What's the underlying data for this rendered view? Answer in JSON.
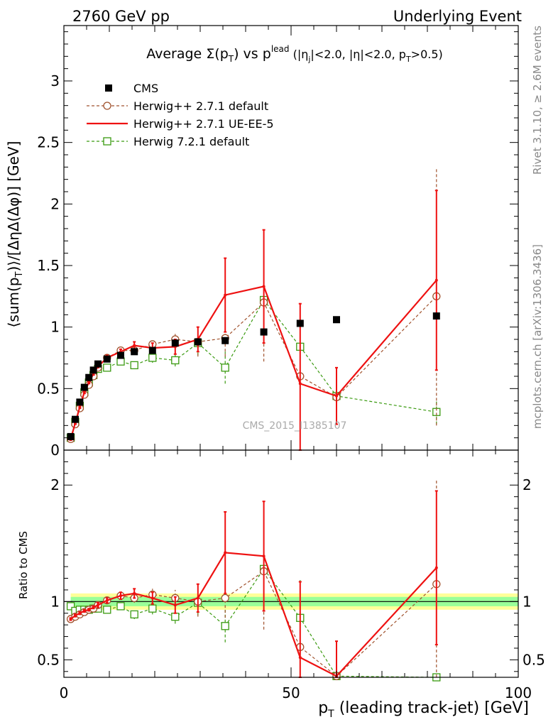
{
  "header": {
    "left": "2760 GeV pp",
    "right": "Underlying Event"
  },
  "side_labels": {
    "rivet": "Rivet 3.1.10, ≥ 2.6M events",
    "mcplots": "mcplots.cern.ch [arXiv:1306.3436]"
  },
  "watermark": "CMS_2015_I1385107",
  "colors": {
    "cms": "#000000",
    "herwigpp_default": "#a0522d",
    "herwigpp_ueee5": "#ee1111",
    "herwig7": "#3a9a10",
    "band_outer": "#ffff99",
    "band_inner": "#99ff99"
  },
  "chart_data": [
    {
      "type": "scatter",
      "panel": "main",
      "title": "Average Σ(p_T) vs p_T^lead (|η_j|<2.0, |η|<2.0, p_T>0.5)",
      "title_parts": {
        "prefix": "Average Σ(p",
        "sub_t": "T",
        "mid": ") vs p",
        "sup_lead": "lead",
        "rest1": " (|η",
        "sub_j": "j",
        "rest2": "|<2.0, |η|<2.0, p",
        "sub_t2": "T",
        "rest3": ">0.5)"
      },
      "ylabel": "⟨sum(p_T)⟩/[ΔηΔ(Δφ)] [GeV]",
      "ylabel_parts": {
        "a": "⟨sum(p",
        "sub": "T",
        "b": ")⟩/[ΔηΔ(Δφ)] [GeV]"
      },
      "xlim": [
        0,
        100
      ],
      "ylim": [
        0,
        3.45
      ],
      "yticks": [
        0,
        0.5,
        1,
        1.5,
        2,
        2.5,
        3
      ],
      "ytick_labels": [
        "0",
        "0.5",
        "1",
        "1.5",
        "2",
        "2.5",
        "3"
      ],
      "legend_position": "top-left",
      "series": [
        {
          "name": "CMS",
          "style": "markers",
          "x": [
            1.5,
            2.5,
            3.5,
            4.5,
            5.5,
            6.5,
            7.5,
            9.5,
            12.5,
            15.5,
            19.5,
            24.5,
            29.5,
            35.5,
            44.0,
            52.0,
            60.0,
            82.0
          ],
          "y": [
            0.11,
            0.25,
            0.39,
            0.51,
            0.59,
            0.65,
            0.7,
            0.74,
            0.77,
            0.8,
            0.81,
            0.87,
            0.88,
            0.89,
            0.96,
            1.03,
            1.06,
            1.09
          ]
        },
        {
          "name": "Herwig++ 2.7.1 default",
          "style": "dashed-circle",
          "x": [
            1.5,
            2.5,
            3.5,
            4.5,
            5.5,
            6.5,
            7.5,
            9.5,
            12.5,
            15.5,
            19.5,
            24.5,
            29.5,
            35.5,
            44.0,
            52.0,
            60.0,
            82.0
          ],
          "y": [
            0.09,
            0.21,
            0.34,
            0.45,
            0.53,
            0.6,
            0.67,
            0.75,
            0.81,
            0.81,
            0.86,
            0.9,
            0.88,
            0.91,
            1.2,
            0.6,
            0.43,
            1.25
          ],
          "err": [
            0.01,
            0.01,
            0.01,
            0.01,
            0.01,
            0.01,
            0.01,
            0.02,
            0.02,
            0.03,
            0.04,
            0.06,
            0.12,
            0.15,
            0.48,
            0.4,
            0.2,
            1.05
          ]
        },
        {
          "name": "Herwig++ 2.7.1 UE-EE-5",
          "style": "solid-line",
          "x": [
            1.5,
            2.5,
            3.5,
            4.5,
            5.5,
            6.5,
            7.5,
            9.5,
            12.5,
            15.5,
            19.5,
            24.5,
            29.5,
            35.5,
            44.0,
            52.0,
            60.0,
            82.0
          ],
          "y": [
            0.09,
            0.22,
            0.35,
            0.47,
            0.55,
            0.62,
            0.68,
            0.75,
            0.8,
            0.85,
            0.83,
            0.84,
            0.9,
            1.26,
            1.33,
            0.54,
            0.44,
            1.38
          ],
          "err": [
            0.01,
            0.01,
            0.01,
            0.01,
            0.01,
            0.01,
            0.01,
            0.02,
            0.02,
            0.03,
            0.04,
            0.06,
            0.1,
            0.3,
            0.46,
            0.65,
            0.23,
            0.73
          ]
        },
        {
          "name": "Herwig 7.2.1 default",
          "style": "dashed-square",
          "x": [
            1.5,
            2.5,
            3.5,
            4.5,
            5.5,
            6.5,
            7.5,
            9.5,
            12.5,
            15.5,
            19.5,
            24.5,
            29.5,
            35.5,
            44.0,
            52.0,
            60.0,
            82.0
          ],
          "y": [
            0.1,
            0.23,
            0.36,
            0.47,
            0.55,
            0.61,
            0.66,
            0.67,
            0.72,
            0.69,
            0.75,
            0.73,
            0.87,
            0.67,
            1.22,
            0.84,
            0.44,
            0.31
          ],
          "err": [
            0.01,
            0.01,
            0.01,
            0.01,
            0.01,
            0.01,
            0.01,
            0.02,
            0.02,
            0.03,
            0.04,
            0.05,
            0.1,
            0.13,
            0.3,
            0.35,
            0.22,
            0.1
          ]
        }
      ]
    },
    {
      "type": "scatter",
      "panel": "ratio",
      "xlabel": "p_T (leading track-jet) [GeV]",
      "xlabel_parts": {
        "a": "p",
        "sub": "T",
        "b": " (leading track-jet) [GeV]"
      },
      "ylabel": "Ratio to CMS",
      "xlim": [
        0,
        100
      ],
      "ylim": [
        0.35,
        2.3
      ],
      "yticks": [
        0.5,
        1,
        2
      ],
      "ytick_labels": [
        "0.5",
        "1",
        "2"
      ],
      "xticks": [
        0,
        50,
        100
      ],
      "xtick_labels": [
        "0",
        "50",
        "100"
      ],
      "band_outer": {
        "x": [
          1.5,
          100
        ],
        "low": 0.93,
        "high": 1.07
      },
      "band_inner": {
        "x": [
          1.5,
          100
        ],
        "low": 0.96,
        "high": 1.04
      },
      "series": [
        {
          "name": "Herwig++ 2.7.1 default",
          "x": [
            1.5,
            2.5,
            3.5,
            4.5,
            5.5,
            6.5,
            7.5,
            9.5,
            12.5,
            15.5,
            19.5,
            24.5,
            29.5,
            35.5,
            44.0,
            52.0,
            60.0,
            82.0
          ],
          "y": [
            0.85,
            0.87,
            0.89,
            0.91,
            0.93,
            0.94,
            0.97,
            1.01,
            1.05,
            1.03,
            1.06,
            1.03,
            1.0,
            1.03,
            1.26,
            0.61,
            0.36,
            1.15
          ],
          "err": [
            0.01,
            0.01,
            0.01,
            0.01,
            0.01,
            0.01,
            0.02,
            0.02,
            0.03,
            0.04,
            0.05,
            0.07,
            0.13,
            0.17,
            0.5,
            0.4,
            0.02,
            0.9
          ]
        },
        {
          "name": "Herwig++ 2.7.1 UE-EE-5",
          "x": [
            1.5,
            2.5,
            3.5,
            4.5,
            5.5,
            6.5,
            7.5,
            9.5,
            12.5,
            15.5,
            19.5,
            24.5,
            29.5,
            35.5,
            44.0,
            52.0,
            60.0,
            82.0
          ],
          "y": [
            0.85,
            0.88,
            0.9,
            0.92,
            0.93,
            0.95,
            0.97,
            1.01,
            1.05,
            1.07,
            1.03,
            0.97,
            1.03,
            1.42,
            1.39,
            0.52,
            0.36,
            1.29
          ],
          "err": [
            0.01,
            0.01,
            0.01,
            0.01,
            0.01,
            0.01,
            0.02,
            0.02,
            0.03,
            0.04,
            0.05,
            0.07,
            0.12,
            0.35,
            0.47,
            0.65,
            0.3,
            0.66
          ]
        },
        {
          "name": "Herwig 7.2.1 default",
          "x": [
            1.5,
            2.5,
            3.5,
            4.5,
            5.5,
            6.5,
            7.5,
            9.5,
            12.5,
            15.5,
            19.5,
            24.5,
            29.5,
            35.5,
            44.0,
            52.0,
            60.0,
            82.0
          ],
          "y": [
            0.96,
            0.92,
            0.93,
            0.93,
            0.93,
            0.94,
            0.94,
            0.93,
            0.96,
            0.89,
            0.94,
            0.87,
            0.99,
            0.79,
            1.28,
            0.86,
            0.36,
            0.28
          ],
          "err": [
            0.01,
            0.01,
            0.01,
            0.01,
            0.01,
            0.01,
            0.02,
            0.02,
            0.03,
            0.04,
            0.05,
            0.06,
            0.11,
            0.14,
            0.31,
            0.34,
            0.02,
            0.02
          ]
        }
      ]
    }
  ]
}
